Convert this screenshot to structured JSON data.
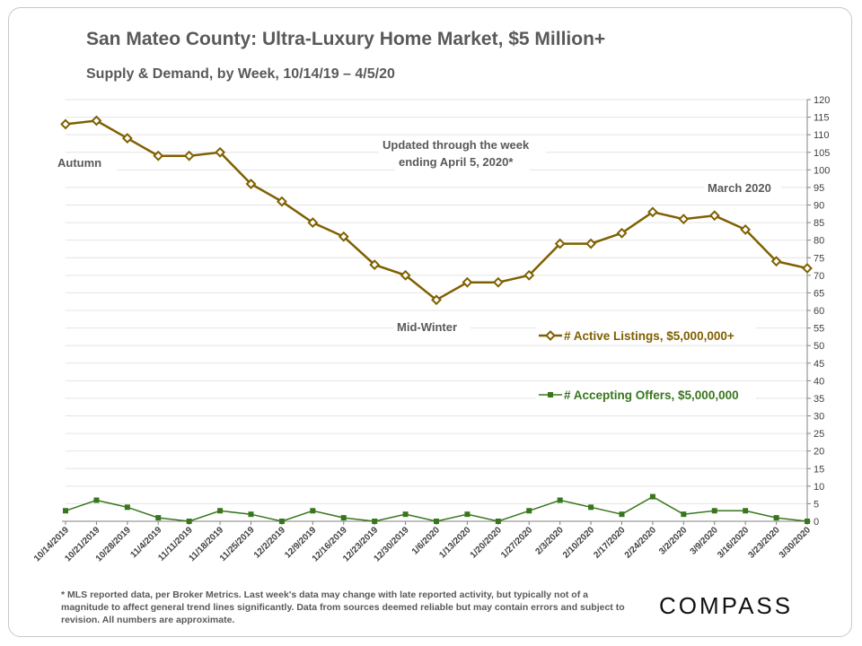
{
  "chart_data": {
    "type": "line",
    "title": "San Mateo County: Ultra-Luxury Home Market, $5 Million+",
    "subtitle": "Supply & Demand, by Week, 10/14/19 – 4/5/20",
    "categories": [
      "10/14/2019",
      "10/21/2019",
      "10/28/2019",
      "11/4/2019",
      "11/11/2019",
      "11/18/2019",
      "11/25/2019",
      "12/2/2019",
      "12/9/2019",
      "12/16/2019",
      "12/23/2019",
      "12/30/2019",
      "1/6/2020",
      "1/13/2020",
      "1/20/2020",
      "1/27/2020",
      "2/3/2020",
      "2/10/2020",
      "2/17/2020",
      "2/24/2020",
      "3/2/2020",
      "3/9/2020",
      "3/16/2020",
      "3/23/2020",
      "3/30/2020"
    ],
    "series": [
      {
        "name": "# Active Listings, $5,000,000+",
        "color": "#7f6000",
        "marker": "diamond",
        "values": [
          113,
          114,
          109,
          104,
          104,
          105,
          96,
          91,
          85,
          81,
          73,
          70,
          63,
          68,
          68,
          70,
          79,
          79,
          82,
          88,
          86,
          87,
          83,
          74,
          72
        ]
      },
      {
        "name": "# Accepting Offers, $5,000,000",
        "color": "#38761d",
        "marker": "square",
        "values": [
          3,
          6,
          4,
          1,
          0,
          3,
          2,
          0,
          3,
          1,
          0,
          2,
          0,
          2,
          0,
          3,
          6,
          4,
          2,
          7,
          2,
          3,
          3,
          1,
          0
        ]
      }
    ],
    "ylim": [
      0,
      120
    ],
    "ytick_step": 5,
    "yaxis_side": "right",
    "grid": true,
    "annotations": [
      "Autumn",
      "Updated through the week",
      "ending April 5, 2020*",
      "March 2020",
      "Mid-Winter"
    ]
  },
  "footnote": "* MLS reported data, per Broker Metrics. Last week's data may change with late reported activity, but typically not of a magnitude to affect general trend lines significantly. Data from sources deemed reliable but may contain errors and subject to revision. All numbers are approximate.",
  "logo": "COMPASS"
}
